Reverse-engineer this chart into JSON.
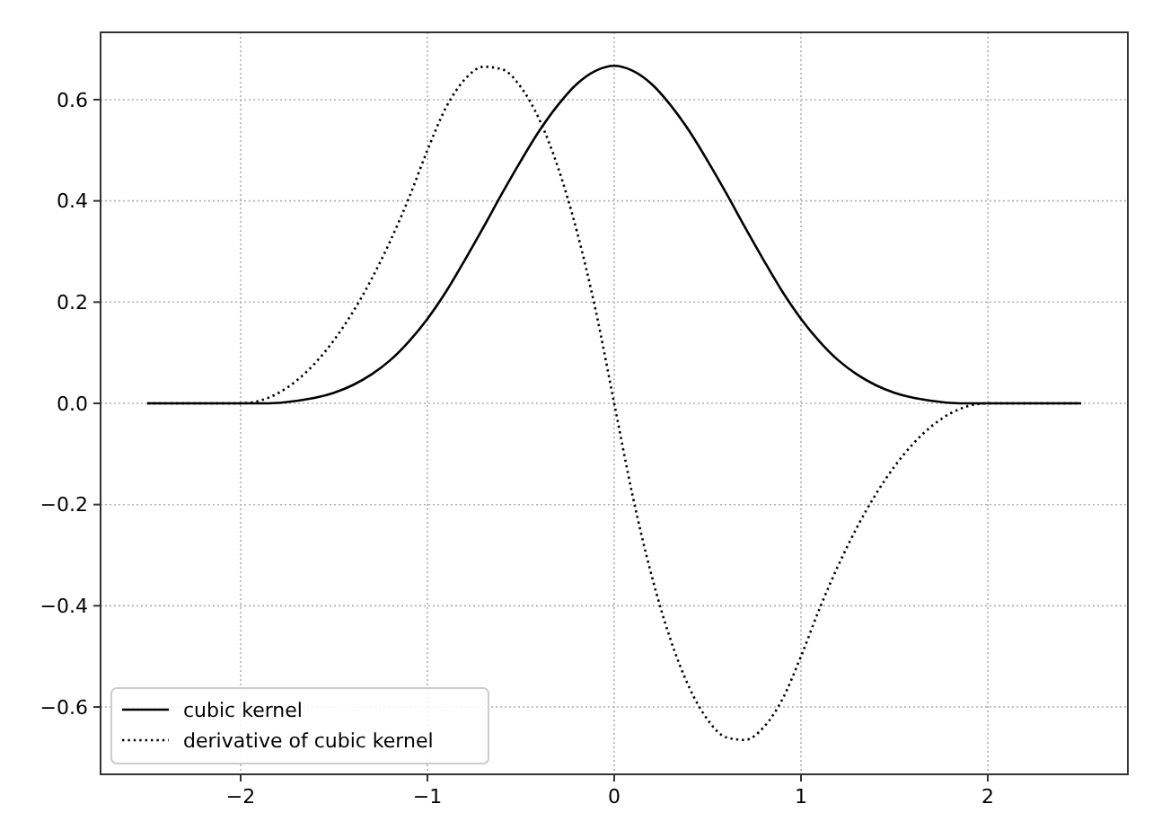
{
  "chart_data": {
    "type": "line",
    "x": [
      -2.5,
      -2.4,
      -2.3,
      -2.2,
      -2.1,
      -2.0,
      -1.9,
      -1.8,
      -1.7,
      -1.6,
      -1.5,
      -1.4,
      -1.3,
      -1.2,
      -1.1,
      -1.0,
      -0.9,
      -0.8,
      -0.7,
      -0.6,
      -0.5,
      -0.4,
      -0.3,
      -0.2,
      -0.1,
      0,
      0.1,
      0.2,
      0.3,
      0.4,
      0.5,
      0.6,
      0.7,
      0.8,
      0.9,
      1.0,
      1.1,
      1.2,
      1.3,
      1.4,
      1.5,
      1.6,
      1.7,
      1.8,
      1.9,
      2.0,
      2.1,
      2.2,
      2.3,
      2.4,
      2.5
    ],
    "series": [
      {
        "name": "cubic kernel",
        "color": "#000000",
        "line_style": "solid",
        "values": [
          0,
          0,
          0,
          0,
          0,
          0,
          0,
          0.001,
          0.005,
          0.011,
          0.021,
          0.036,
          0.057,
          0.085,
          0.122,
          0.167,
          0.221,
          0.283,
          0.348,
          0.415,
          0.479,
          0.539,
          0.59,
          0.631,
          0.657,
          0.667,
          0.657,
          0.631,
          0.59,
          0.539,
          0.479,
          0.415,
          0.348,
          0.283,
          0.221,
          0.167,
          0.122,
          0.085,
          0.057,
          0.036,
          0.021,
          0.011,
          0.005,
          0.001,
          0,
          0,
          0,
          0,
          0,
          0,
          0
        ]
      },
      {
        "name": "derivative of cubic kernel",
        "color": "#000000",
        "line_style": "dotted",
        "values": [
          0,
          0,
          0,
          0,
          0,
          0,
          0.005,
          0.02,
          0.045,
          0.08,
          0.125,
          0.18,
          0.245,
          0.32,
          0.405,
          0.5,
          0.585,
          0.64,
          0.665,
          0.66,
          0.625,
          0.56,
          0.465,
          0.34,
          0.185,
          0,
          -0.185,
          -0.34,
          -0.465,
          -0.56,
          -0.625,
          -0.66,
          -0.665,
          -0.64,
          -0.585,
          -0.5,
          -0.405,
          -0.32,
          -0.245,
          -0.18,
          -0.125,
          -0.08,
          -0.045,
          -0.02,
          -0.005,
          0,
          0,
          0,
          0,
          0,
          0
        ]
      }
    ],
    "xlim": [
      -2.75,
      2.75
    ],
    "ylim": [
      -0.733,
      0.733
    ],
    "xticks": [
      {
        "value": -2,
        "label": "−2"
      },
      {
        "value": -1,
        "label": "−1"
      },
      0,
      1,
      2
    ],
    "yticks": [
      {
        "value": -0.6,
        "label": "−0.6"
      },
      {
        "value": -0.4,
        "label": "−0.4"
      },
      {
        "value": -0.2,
        "label": "−0.2"
      },
      {
        "value": 0,
        "label": "0.0"
      },
      0.2,
      0.4,
      0.6
    ],
    "grid": true,
    "legend": "bottom left",
    "marker": "none"
  }
}
